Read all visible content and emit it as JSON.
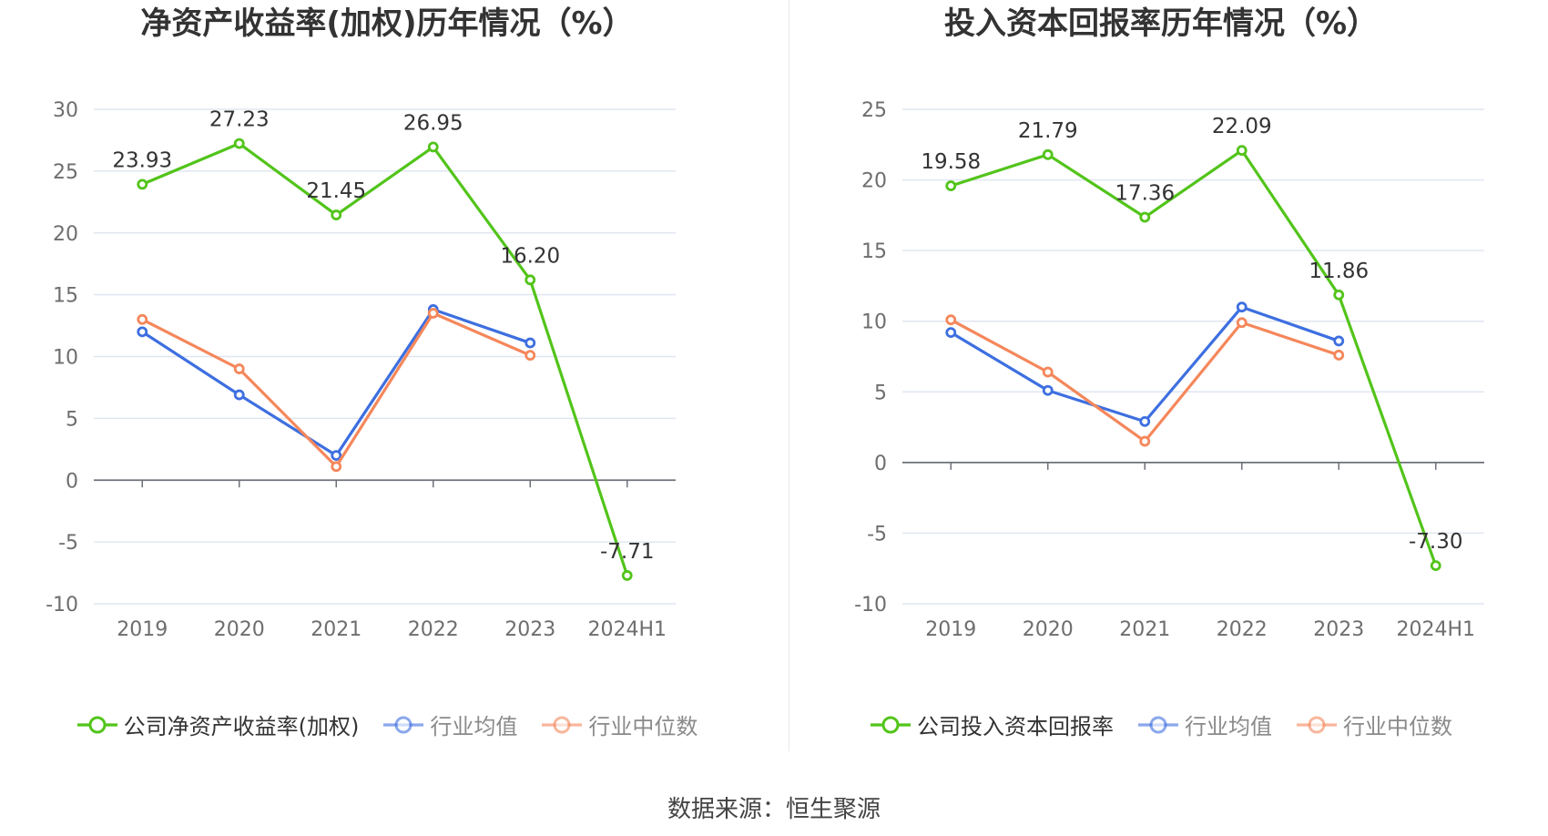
{
  "footer": {
    "source": "数据来源：恒生聚源"
  },
  "chart_data": [
    {
      "type": "line",
      "title": "净资产收益率(加权)历年情况（%）",
      "categories": [
        "2019",
        "2020",
        "2021",
        "2022",
        "2023",
        "2024H1"
      ],
      "y_ticks": [
        "30",
        "25",
        "20",
        "15",
        "10",
        "5",
        "0",
        "-5",
        "-10"
      ],
      "ylim": [
        -10,
        30
      ],
      "grid": true,
      "legend_position": "bottom",
      "series": [
        {
          "name": "公司净资产收益率(加权)",
          "color": "#52c41a",
          "values": [
            23.93,
            27.23,
            21.45,
            26.95,
            16.2,
            -7.71
          ],
          "labels": [
            "23.93",
            "27.23",
            "21.45",
            "26.95",
            "16.20",
            "-7.71"
          ],
          "muted": false
        },
        {
          "name": "行业均值",
          "color": "#3d6fe0",
          "values": [
            12.0,
            6.9,
            2.0,
            13.8,
            11.1,
            null
          ],
          "labels": null,
          "muted": true
        },
        {
          "name": "行业中位数",
          "color": "#f5875b",
          "values": [
            13.0,
            9.0,
            1.1,
            13.5,
            10.1,
            null
          ],
          "labels": null,
          "muted": true
        }
      ]
    },
    {
      "type": "line",
      "title": "投入资本回报率历年情况（%）",
      "categories": [
        "2019",
        "2020",
        "2021",
        "2022",
        "2023",
        "2024H1"
      ],
      "y_ticks": [
        "25",
        "20",
        "15",
        "10",
        "5",
        "0",
        "-5",
        "-10"
      ],
      "ylim": [
        -10,
        25
      ],
      "grid": true,
      "legend_position": "bottom",
      "series": [
        {
          "name": "公司投入资本回报率",
          "color": "#52c41a",
          "values": [
            19.58,
            21.79,
            17.36,
            22.09,
            11.86,
            -7.3
          ],
          "labels": [
            "19.58",
            "21.79",
            "17.36",
            "22.09",
            "11.86",
            "-7.30"
          ],
          "muted": false
        },
        {
          "name": "行业均值",
          "color": "#3d6fe0",
          "values": [
            9.2,
            5.1,
            2.9,
            11.0,
            8.6,
            null
          ],
          "labels": null,
          "muted": true
        },
        {
          "name": "行业中位数",
          "color": "#f5875b",
          "values": [
            10.1,
            6.4,
            1.5,
            9.9,
            7.6,
            null
          ],
          "labels": null,
          "muted": true
        }
      ]
    }
  ]
}
